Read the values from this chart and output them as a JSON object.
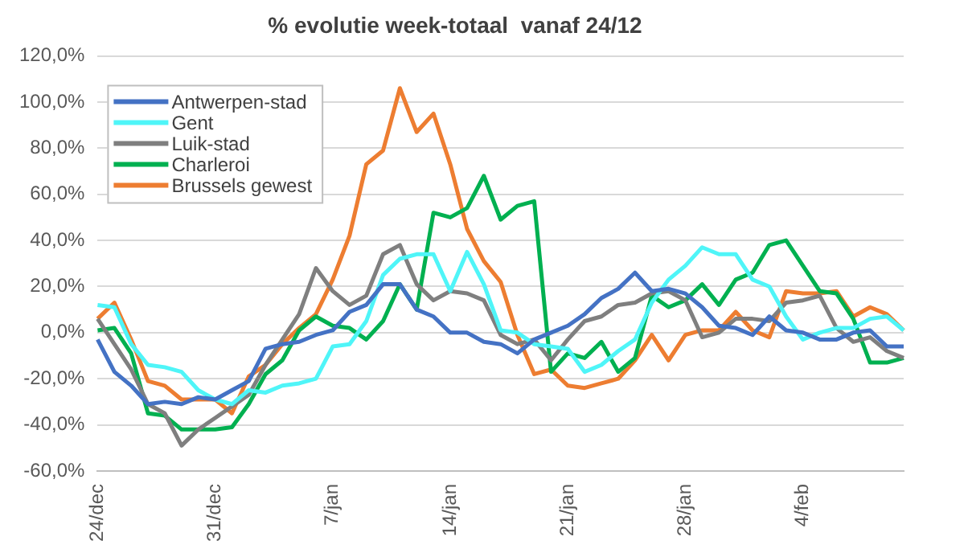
{
  "chart_data": {
    "type": "line",
    "title": "% evolutie week-totaal  vanaf 24/12",
    "categories": [
      "24/dec",
      null,
      null,
      null,
      null,
      null,
      null,
      "31/dec",
      null,
      null,
      null,
      null,
      null,
      null,
      "7/jan",
      null,
      null,
      null,
      null,
      null,
      null,
      "14/jan",
      null,
      null,
      null,
      null,
      null,
      null,
      "21/jan",
      null,
      null,
      null,
      null,
      null,
      null,
      "28/jan",
      null,
      null,
      null,
      null,
      null,
      null,
      "4/feb",
      null,
      null,
      null,
      null,
      null,
      null
    ],
    "series": [
      {
        "name": "Antwerpen-stad",
        "color": "#4472c4",
        "values": [
          -3,
          -17,
          -23,
          -31,
          -30,
          -31,
          -28,
          -29,
          -25,
          -21,
          -7,
          -5,
          -4,
          -1,
          1,
          9,
          12,
          21,
          21,
          10,
          7,
          0,
          0,
          -4,
          -5,
          -9,
          -3,
          0,
          3,
          8,
          15,
          19,
          26,
          18,
          19,
          17,
          11,
          3,
          2,
          -1,
          7,
          1,
          0,
          -3,
          -3,
          0,
          1,
          -6,
          -6
        ]
      },
      {
        "name": "Gent",
        "color": "#4ff5f8",
        "values": [
          12,
          11,
          -5,
          -14,
          -15,
          -17,
          -25,
          -29,
          -31,
          -25,
          -26,
          -23,
          -22,
          -20,
          -6,
          -5,
          5,
          25,
          32,
          34,
          34,
          18,
          35,
          21,
          1,
          0,
          -5,
          -6,
          -7,
          -17,
          -14,
          -8,
          -3,
          13,
          23,
          29,
          37,
          34,
          34,
          23,
          20,
          7,
          -3,
          0,
          2,
          2,
          6,
          7,
          1
        ]
      },
      {
        "name": "Luik-stad",
        "color": "#7f7f7f",
        "values": [
          6,
          -5,
          -16,
          -31,
          -35,
          -49,
          -42,
          -37,
          -32,
          -27,
          -14,
          -3,
          8,
          28,
          18,
          12,
          16,
          34,
          38,
          21,
          14,
          18,
          17,
          14,
          -1,
          -5,
          -3,
          -12,
          -3,
          5,
          7,
          12,
          13,
          17,
          18,
          14,
          -2,
          0,
          6,
          6,
          5,
          13,
          14,
          16,
          2,
          -4,
          -2,
          -8,
          -11
        ]
      },
      {
        "name": "Charleroi",
        "color": "#00b050",
        "values": [
          1,
          2,
          -9,
          -35,
          -36,
          -42,
          -42,
          -42,
          -41,
          -31,
          -18,
          -12,
          1,
          7,
          3,
          2,
          -3,
          5,
          21,
          10,
          52,
          50,
          54,
          68,
          49,
          55,
          57,
          -17,
          -9,
          -11,
          -4,
          -17,
          -11,
          16,
          11,
          14,
          21,
          12,
          23,
          26,
          38,
          40,
          29,
          18,
          17,
          6,
          -13,
          -13,
          -11
        ]
      },
      {
        "name": "Brussels gewest",
        "color": "#ed7d31",
        "values": [
          6,
          13,
          -3,
          -21,
          -23,
          -29,
          -29,
          -29,
          -35,
          -19,
          -14,
          -5,
          2,
          8,
          23,
          42,
          73,
          79,
          106,
          87,
          95,
          73,
          45,
          31,
          22,
          -1,
          -18,
          -16,
          -23,
          -24,
          -22,
          -20,
          -12,
          -1,
          -12,
          -1,
          1,
          1,
          9,
          1,
          -2,
          18,
          17,
          17,
          18,
          7,
          11,
          8,
          1
        ]
      }
    ],
    "ylim": [
      -60,
      120
    ],
    "yticks": [
      {
        "value": -60,
        "label": "-60,0%"
      },
      {
        "value": -40,
        "label": "-40,0%"
      },
      {
        "value": -20,
        "label": "-20,0%"
      },
      {
        "value": 0,
        "label": "0,0%"
      },
      {
        "value": 20,
        "label": "20,0%"
      },
      {
        "value": 40,
        "label": "40,0%"
      },
      {
        "value": 60,
        "label": "60,0%"
      },
      {
        "value": 80,
        "label": "80,0%"
      },
      {
        "value": 100,
        "label": "100,0%"
      },
      {
        "value": 120,
        "label": "120,0%"
      }
    ],
    "grid": "y",
    "legend": "top left",
    "marker": "none",
    "line_style": "solid"
  }
}
